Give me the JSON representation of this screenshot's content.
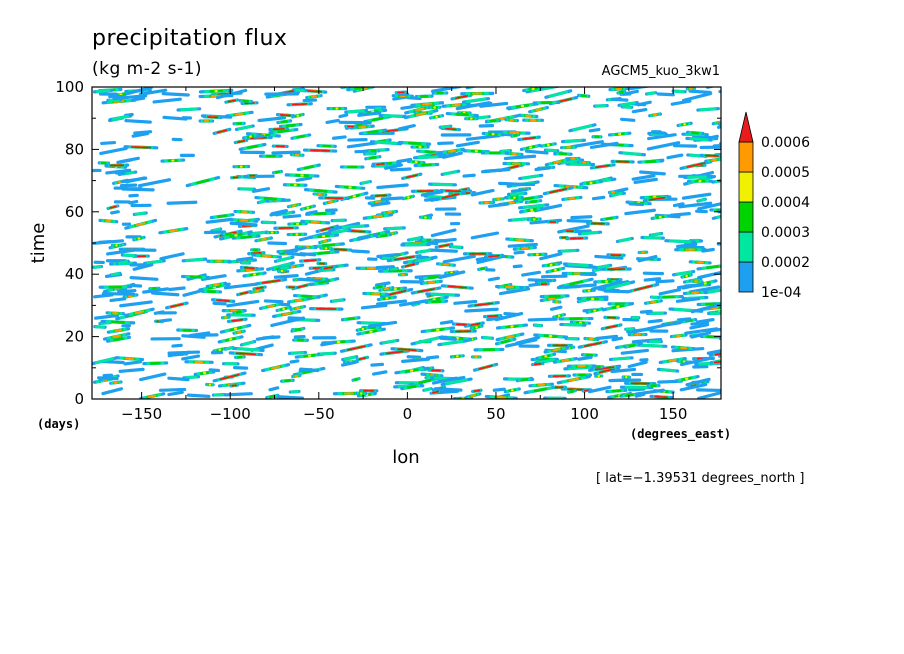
{
  "chart_data": {
    "type": "heatmap",
    "title": "precipitation flux",
    "subtitle": "(kg m-2 s-1)",
    "dataset_label": "AGCM5_kuo_3kw1",
    "xlabel": "lon",
    "x_units": "(degrees_east)",
    "ylabel": "time",
    "y_units": "(days)",
    "xlim": [
      -178,
      177
    ],
    "ylim": [
      0,
      100
    ],
    "x_ticks": [
      -150,
      -100,
      -50,
      0,
      50,
      100,
      150
    ],
    "y_ticks": [
      0,
      20,
      40,
      60,
      80,
      100
    ],
    "x_tick_labels": [
      "−150",
      "−100",
      "−50",
      "0",
      "50",
      "100",
      "150"
    ],
    "y_tick_labels": [
      "0",
      "20",
      "40",
      "60",
      "80",
      "100"
    ],
    "slice_note": "[ lat=−1.39531 degrees_north ]",
    "colorbar": {
      "levels": [
        0.0001,
        0.0002,
        0.0003,
        0.0004,
        0.0005,
        0.0006
      ],
      "level_labels": [
        "1e-04",
        "0.0002",
        "0.0003",
        "0.0004",
        "0.0005",
        "0.0006"
      ],
      "colors": [
        "#1ea0f0",
        "#00e8a0",
        "#00d400",
        "#f0f000",
        "#ff9a00",
        "#e81c1c"
      ],
      "extend": "max"
    }
  }
}
